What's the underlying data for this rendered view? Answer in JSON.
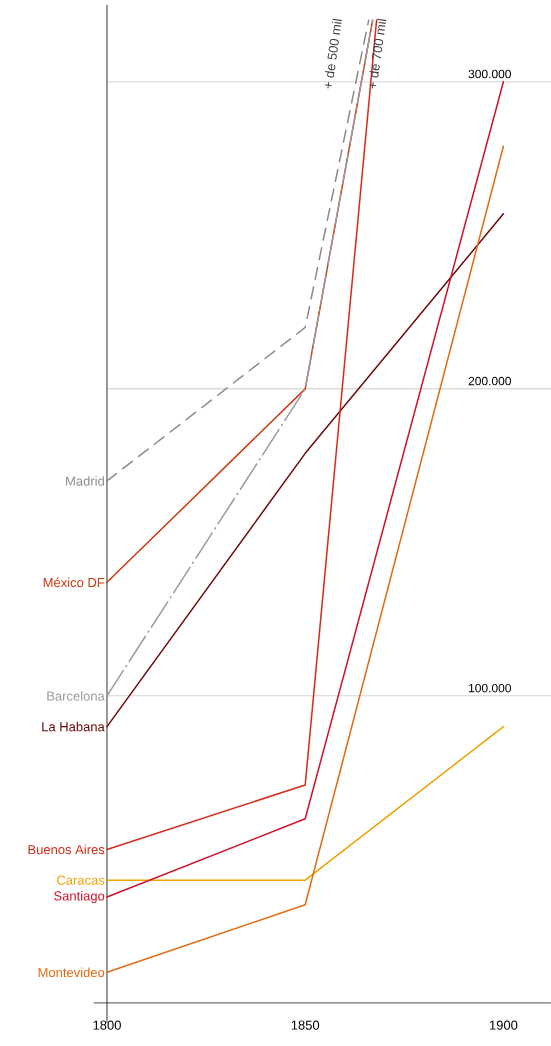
{
  "chart_data": {
    "type": "line",
    "x": [
      1800,
      1850,
      1900
    ],
    "xlim": [
      1800,
      1912
    ],
    "xticks": [
      1800,
      1850,
      1900
    ],
    "ylim": [
      0,
      325000
    ],
    "yticks": [
      {
        "value": 100000,
        "label": "100.000"
      },
      {
        "value": 200000,
        "label": "200.000"
      },
      {
        "value": 300000,
        "label": "300.000"
      }
    ],
    "grid": "y",
    "series": [
      {
        "name": "Madrid",
        "color": "#8a8a8a",
        "line_style": "dashed",
        "x": [
          1800,
          1850,
          1866
        ],
        "values": [
          170000,
          220000,
          320000
        ]
      },
      {
        "name": "México DF",
        "color": "#cc3a10",
        "x": [
          1800,
          1850,
          1867
        ],
        "values": [
          137000,
          200000,
          320000
        ]
      },
      {
        "name": "Barcelona",
        "color": "#9a9a9a",
        "line_style": "dashdot",
        "x": [
          1800,
          1850,
          1867
        ],
        "values": [
          100000,
          200000,
          320000
        ]
      },
      {
        "name": "La Habana",
        "color": "#6b0a0a",
        "values": [
          90000,
          179000,
          257000
        ]
      },
      {
        "name": "Buenos Aires",
        "color": "#d42a1a",
        "x": [
          1800,
          1850,
          1868
        ],
        "values": [
          50000,
          71000,
          320000
        ]
      },
      {
        "name": "Caracas",
        "color": "#f0a000",
        "values": [
          40000,
          40000,
          90000
        ]
      },
      {
        "name": "Santiago",
        "color": "#d0102a",
        "values": [
          34500,
          60000,
          300000
        ]
      },
      {
        "name": "Montevideo",
        "color": "#e06a10",
        "values": [
          10000,
          32000,
          279000
        ]
      }
    ],
    "annotations": [
      "+ de 500 mil",
      "+ de 700 mil"
    ]
  }
}
